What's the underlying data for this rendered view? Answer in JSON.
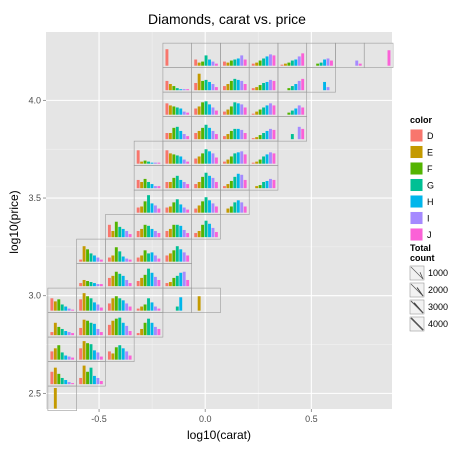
{
  "chart_data": {
    "type": "bar",
    "subtype": "binned glyph plot (mini bar chart per 2D bin)",
    "title": "Diamonds, carat vs. price",
    "xlabel": "log10(carat)",
    "ylabel": "log10(price)",
    "xlim": [
      -0.75,
      0.88
    ],
    "ylim": [
      2.42,
      4.35
    ],
    "x_ticks": [
      {
        "value": -0.5,
        "label": "-0.5"
      },
      {
        "value": 0.0,
        "label": "0.0"
      },
      {
        "value": 0.5,
        "label": "0.5"
      }
    ],
    "y_ticks": [
      {
        "value": 2.5,
        "label": "2.5"
      },
      {
        "value": 3.0,
        "label": "3.0"
      },
      {
        "value": 3.5,
        "label": "3.5"
      },
      {
        "value": 4.0,
        "label": "4.0"
      }
    ],
    "grid": true,
    "cell_width": 0.1355,
    "cell_height": 0.1255,
    "color_legend": {
      "title": "color",
      "placement": "right",
      "entries": [
        {
          "label": "D",
          "color": "#F8766D"
        },
        {
          "label": "E",
          "color": "#C49A00"
        },
        {
          "label": "F",
          "color": "#53B400"
        },
        {
          "label": "G",
          "color": "#00C094"
        },
        {
          "label": "H",
          "color": "#00B6EB"
        },
        {
          "label": "I",
          "color": "#A58AFF"
        },
        {
          "label": "J",
          "color": "#FB61D7"
        }
      ]
    },
    "size_legend": {
      "title": [
        "Total",
        "count"
      ],
      "placement": "right",
      "entries": [
        {
          "label": "1000",
          "value": 1000
        },
        {
          "label": "2000",
          "value": 2000
        },
        {
          "label": "3000",
          "value": 3000
        },
        {
          "label": "4000",
          "value": 4000
        }
      ]
    },
    "cells": [
      {
        "x": -0.6735,
        "y": 2.4746,
        "v": [
          0,
          1,
          0,
          0,
          0,
          0,
          0
        ]
      },
      {
        "x": -0.6735,
        "y": 2.6,
        "v": [
          0.6,
          0.8,
          0.5,
          0.3,
          0.2,
          0.1,
          0.05
        ]
      },
      {
        "x": -0.6735,
        "y": 2.7254,
        "v": [
          0.4,
          0.55,
          0.7,
          0.35,
          0.2,
          0.15,
          0.1
        ]
      },
      {
        "x": -0.6735,
        "y": 2.8508,
        "v": [
          0.15,
          0.6,
          0.4,
          0.3,
          0.2,
          0.15,
          0.1
        ]
      },
      {
        "x": -0.6735,
        "y": 2.9762,
        "v": [
          0.6,
          0.45,
          0.55,
          0.3,
          0.2,
          0.1,
          0.05
        ]
      },
      {
        "x": -0.538,
        "y": 2.6,
        "v": [
          0.3,
          0.9,
          0.6,
          0.8,
          0.4,
          0.3,
          0.15
        ]
      },
      {
        "x": -0.538,
        "y": 2.7254,
        "v": [
          0.55,
          0.9,
          0.8,
          0.75,
          0.45,
          0.35,
          0.15
        ]
      },
      {
        "x": -0.538,
        "y": 2.8508,
        "v": [
          0.35,
          0.75,
          0.7,
          0.6,
          0.55,
          0.3,
          0.15
        ]
      },
      {
        "x": -0.538,
        "y": 2.9762,
        "v": [
          0.55,
          0.85,
          0.7,
          0.6,
          0.4,
          0.3,
          0.15
        ]
      },
      {
        "x": -0.538,
        "y": 3.1016,
        "v": [
          0.15,
          0.3,
          0.25,
          0.2,
          0.15,
          0.1,
          0.1
        ]
      },
      {
        "x": -0.538,
        "y": 3.227,
        "v": [
          0.1,
          0.75,
          0.6,
          0.4,
          0.3,
          0.2,
          0.1
        ]
      },
      {
        "x": -0.4025,
        "y": 2.7254,
        "v": [
          0.4,
          0.3,
          0.6,
          0.7,
          0.55,
          0.4,
          0.2
        ]
      },
      {
        "x": -0.4025,
        "y": 2.8508,
        "v": [
          0.5,
          0.7,
          0.8,
          0.85,
          0.6,
          0.45,
          0.2
        ]
      },
      {
        "x": -0.4025,
        "y": 2.9762,
        "v": [
          0.35,
          0.6,
          0.7,
          0.6,
          0.5,
          0.35,
          0.2
        ]
      },
      {
        "x": -0.4025,
        "y": 3.1016,
        "v": [
          0.4,
          0.5,
          0.7,
          0.6,
          0.5,
          0.3,
          0.15
        ]
      },
      {
        "x": -0.4025,
        "y": 3.227,
        "v": [
          0.2,
          0.3,
          0.7,
          0.5,
          0.25,
          0.15,
          0.1
        ]
      },
      {
        "x": -0.4025,
        "y": 3.3524,
        "v": [
          0.6,
          0.3,
          0.75,
          0.5,
          0.4,
          0.3,
          0.15
        ]
      },
      {
        "x": -0.267,
        "y": 2.8508,
        "v": [
          0.1,
          0.3,
          0.6,
          0.8,
          0.6,
          0.4,
          0.3
        ]
      },
      {
        "x": -0.267,
        "y": 2.9762,
        "v": [
          0.1,
          0.2,
          0.3,
          0.6,
          0.4,
          0.2,
          0.1
        ]
      },
      {
        "x": -0.267,
        "y": 3.1016,
        "v": [
          0.25,
          0.4,
          0.55,
          0.85,
          0.65,
          0.45,
          0.3
        ]
      },
      {
        "x": -0.267,
        "y": 3.227,
        "v": [
          0.2,
          0.3,
          0.55,
          0.4,
          0.45,
          0.3,
          0.15
        ]
      },
      {
        "x": -0.267,
        "y": 3.3524,
        "v": [
          0.3,
          0.4,
          0.6,
          0.55,
          0.4,
          0.3,
          0.2
        ]
      },
      {
        "x": -0.267,
        "y": 3.4778,
        "v": [
          0.25,
          0.3,
          0.55,
          0.85,
          0.45,
          0.35,
          0.2
        ]
      },
      {
        "x": -0.267,
        "y": 3.6032,
        "v": [
          0.4,
          0.3,
          0.45,
          0.3,
          0.2,
          0.1,
          0.1
        ]
      },
      {
        "x": -0.267,
        "y": 3.7286,
        "v": [
          0.65,
          0.1,
          0.15,
          0.1,
          0.05,
          0.05,
          0.05
        ]
      },
      {
        "x": -0.1315,
        "y": 2.9762,
        "v": [
          0,
          0,
          0,
          0.2,
          0.65,
          0,
          0
        ]
      },
      {
        "x": -0.1315,
        "y": 3.1016,
        "v": [
          0.15,
          0.2,
          0.4,
          0.5,
          0.65,
          0.7,
          0.3
        ]
      },
      {
        "x": -0.1315,
        "y": 3.227,
        "v": [
          0.3,
          0.4,
          0.55,
          0.75,
          0.6,
          0.45,
          0.3
        ]
      },
      {
        "x": -0.1315,
        "y": 3.3524,
        "v": [
          0.3,
          0.4,
          0.6,
          0.6,
          0.55,
          0.35,
          0.2
        ]
      },
      {
        "x": -0.1315,
        "y": 3.4778,
        "v": [
          0.25,
          0.3,
          0.5,
          0.65,
          0.4,
          0.25,
          0.15
        ]
      },
      {
        "x": -0.1315,
        "y": 3.6032,
        "v": [
          0.3,
          0.3,
          0.5,
          0.6,
          0.4,
          0.3,
          0.2
        ]
      },
      {
        "x": -0.1315,
        "y": 3.7286,
        "v": [
          0.65,
          0.5,
          0.45,
          0.4,
          0.35,
          0.2,
          0.1
        ]
      },
      {
        "x": -0.1315,
        "y": 3.854,
        "v": [
          0.3,
          0.3,
          0.55,
          0.6,
          0.4,
          0.25,
          0.15
        ]
      },
      {
        "x": -0.1315,
        "y": 3.9794,
        "v": [
          0.55,
          0.45,
          0.4,
          0.35,
          0.3,
          0.15,
          0.1
        ]
      },
      {
        "x": -0.1315,
        "y": 4.1048,
        "v": [
          0.45,
          0.3,
          0.2,
          0.1,
          0.05,
          0.05,
          0.05
        ]
      },
      {
        "x": -0.1315,
        "y": 4.2302,
        "v": [
          0.8,
          0,
          0,
          0,
          0,
          0,
          0
        ]
      },
      {
        "x": 0.004,
        "y": 2.9762,
        "v": [
          0,
          0.7,
          0,
          0,
          0,
          0,
          0
        ]
      },
      {
        "x": 0.004,
        "y": 3.3524,
        "v": [
          0.2,
          0.3,
          0.6,
          0.8,
          0.65,
          0.45,
          0.25
        ]
      },
      {
        "x": 0.004,
        "y": 3.4778,
        "v": [
          0.2,
          0.35,
          0.55,
          0.75,
          0.6,
          0.45,
          0.3
        ]
      },
      {
        "x": 0.004,
        "y": 3.6032,
        "v": [
          0.2,
          0.3,
          0.55,
          0.75,
          0.6,
          0.5,
          0.3
        ]
      },
      {
        "x": 0.004,
        "y": 3.7286,
        "v": [
          0.25,
          0.35,
          0.5,
          0.7,
          0.6,
          0.5,
          0.3
        ]
      },
      {
        "x": 0.004,
        "y": 3.854,
        "v": [
          0.3,
          0.4,
          0.55,
          0.7,
          0.55,
          0.4,
          0.25
        ]
      },
      {
        "x": 0.004,
        "y": 3.9794,
        "v": [
          0.3,
          0.4,
          0.6,
          0.65,
          0.5,
          0.35,
          0.2
        ]
      },
      {
        "x": 0.004,
        "y": 4.1048,
        "v": [
          0.35,
          0.8,
          0.45,
          0.5,
          0.4,
          0.3,
          0.15
        ]
      },
      {
        "x": 0.004,
        "y": 4.2302,
        "v": [
          0.3,
          0.15,
          0.2,
          0.5,
          0.3,
          0.2,
          0.1
        ]
      },
      {
        "x": 0.1395,
        "y": 3.4778,
        "v": [
          0,
          0.2,
          0.3,
          0.5,
          0.6,
          0.5,
          0.3
        ]
      },
      {
        "x": 0.1395,
        "y": 3.6032,
        "v": [
          0.1,
          0.2,
          0.35,
          0.55,
          0.7,
          0.65,
          0.4
        ]
      },
      {
        "x": 0.1395,
        "y": 3.7286,
        "v": [
          0.1,
          0.2,
          0.35,
          0.5,
          0.55,
          0.6,
          0.45
        ]
      },
      {
        "x": 0.1395,
        "y": 3.854,
        "v": [
          0.15,
          0.25,
          0.4,
          0.5,
          0.5,
          0.45,
          0.3
        ]
      },
      {
        "x": 0.1395,
        "y": 3.9794,
        "v": [
          0.15,
          0.25,
          0.4,
          0.6,
          0.55,
          0.5,
          0.35
        ]
      },
      {
        "x": 0.1395,
        "y": 4.1048,
        "v": [
          0.2,
          0.3,
          0.45,
          0.55,
          0.5,
          0.45,
          0.3
        ]
      },
      {
        "x": 0.1395,
        "y": 4.2302,
        "v": [
          0.2,
          0.15,
          0.25,
          0.3,
          0.35,
          0.5,
          0.3
        ]
      },
      {
        "x": 0.275,
        "y": 3.6032,
        "v": [
          0,
          0.1,
          0.15,
          0.3,
          0.35,
          0.45,
          0.4
        ]
      },
      {
        "x": 0.275,
        "y": 3.7286,
        "v": [
          0.05,
          0.1,
          0.2,
          0.35,
          0.45,
          0.55,
          0.5
        ]
      },
      {
        "x": 0.275,
        "y": 3.854,
        "v": [
          0.05,
          0.1,
          0.2,
          0.3,
          0.4,
          0.5,
          0.45
        ]
      },
      {
        "x": 0.275,
        "y": 3.9794,
        "v": [
          0.05,
          0.15,
          0.25,
          0.35,
          0.45,
          0.55,
          0.45
        ]
      },
      {
        "x": 0.275,
        "y": 4.1048,
        "v": [
          0.1,
          0.15,
          0.25,
          0.35,
          0.4,
          0.5,
          0.45
        ]
      },
      {
        "x": 0.275,
        "y": 4.2302,
        "v": [
          0.1,
          0.15,
          0.25,
          0.35,
          0.45,
          0.55,
          0.5
        ]
      },
      {
        "x": 0.4105,
        "y": 3.854,
        "v": [
          0,
          0,
          0,
          0.25,
          0,
          0.6,
          0.5
        ]
      },
      {
        "x": 0.4105,
        "y": 3.9794,
        "v": [
          0,
          0,
          0.1,
          0.2,
          0.3,
          0.45,
          0.35
        ]
      },
      {
        "x": 0.4105,
        "y": 4.1048,
        "v": [
          0,
          0,
          0.1,
          0.2,
          0.3,
          0.45,
          0.55
        ]
      },
      {
        "x": 0.4105,
        "y": 4.2302,
        "v": [
          0.05,
          0.1,
          0.15,
          0.25,
          0.3,
          0.45,
          0.6
        ]
      },
      {
        "x": 0.546,
        "y": 4.1048,
        "v": [
          0,
          0,
          0,
          0,
          0.4,
          0.15,
          0
        ]
      },
      {
        "x": 0.546,
        "y": 4.2302,
        "v": [
          0,
          0,
          0.1,
          0.15,
          0.3,
          0.35,
          0.25
        ]
      },
      {
        "x": 0.6815,
        "y": 4.2302,
        "v": [
          0,
          0,
          0,
          0,
          0,
          0.25,
          0.1
        ]
      },
      {
        "x": 0.817,
        "y": 4.2302,
        "v": [
          0,
          0,
          0,
          0,
          0,
          0,
          0.75
        ]
      }
    ]
  }
}
